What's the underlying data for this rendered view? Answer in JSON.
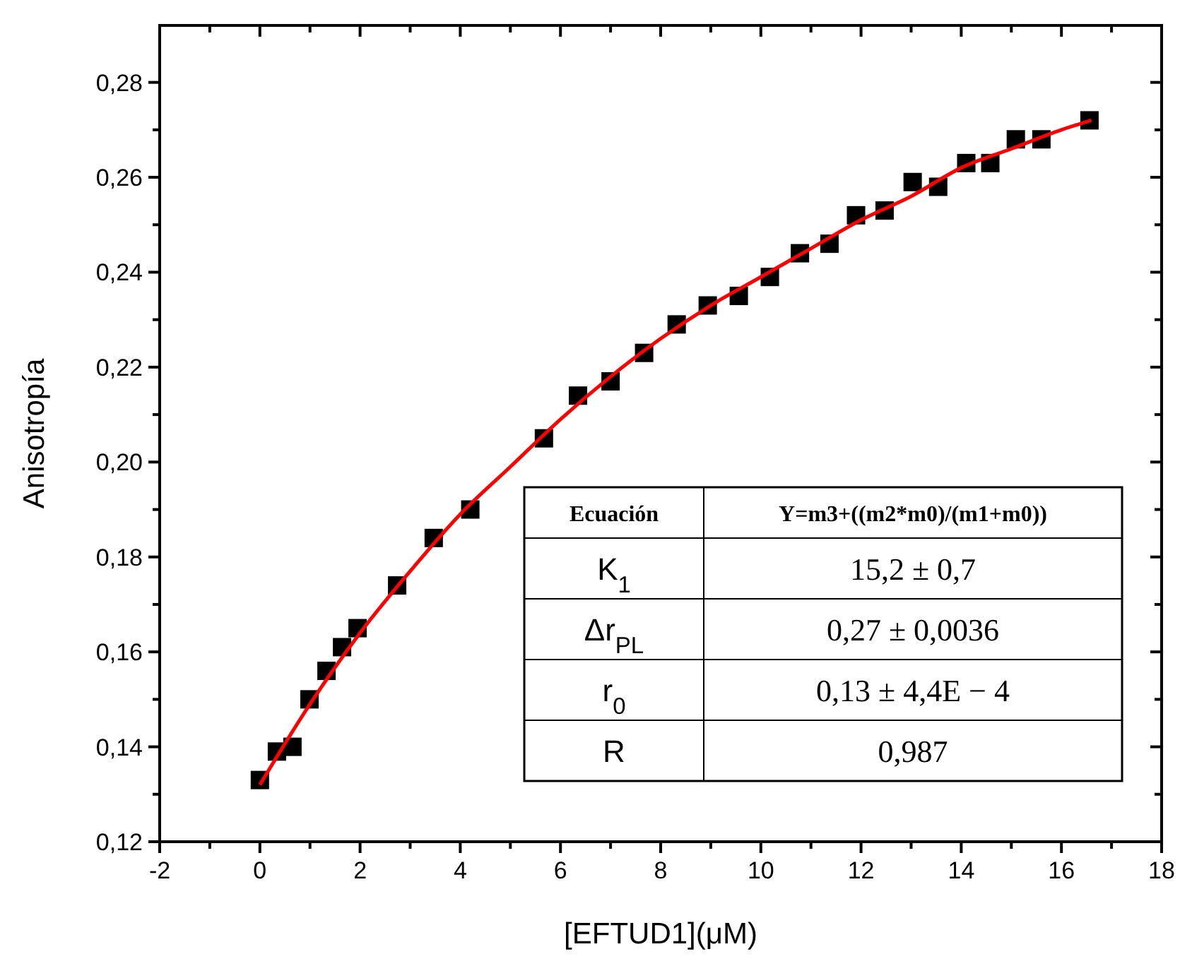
{
  "chart_data": {
    "type": "scatter",
    "xlabel": "[EFTUD1](μM)",
    "ylabel": "Anisotropía",
    "xlim": [
      -2,
      18
    ],
    "ylim": [
      0.12,
      0.292
    ],
    "xticks": [
      -2,
      {
        "value": -1,
        "label": null
      },
      0,
      {
        "value": 1,
        "label": null
      },
      2,
      {
        "value": 3,
        "label": null
      },
      4,
      {
        "value": 5,
        "label": null
      },
      6,
      {
        "value": 7,
        "label": null
      },
      8,
      {
        "value": 9,
        "label": null
      },
      10,
      {
        "value": 11,
        "label": null
      },
      12,
      {
        "value": 13,
        "label": null
      },
      14,
      {
        "value": 15,
        "label": null
      },
      16,
      {
        "value": 17,
        "label": null
      },
      18
    ],
    "yticks": [
      {
        "value": 0.12,
        "label": "0,12"
      },
      {
        "value": 0.13,
        "label": null
      },
      {
        "value": 0.14,
        "label": "0,14"
      },
      {
        "value": 0.15,
        "label": null
      },
      {
        "value": 0.16,
        "label": "0,16"
      },
      {
        "value": 0.17,
        "label": null
      },
      {
        "value": 0.18,
        "label": "0,18"
      },
      {
        "value": 0.19,
        "label": null
      },
      {
        "value": 0.2,
        "label": "0,20"
      },
      {
        "value": 0.21,
        "label": null
      },
      {
        "value": 0.22,
        "label": "0,22"
      },
      {
        "value": 0.23,
        "label": null
      },
      {
        "value": 0.24,
        "label": "0,24"
      },
      {
        "value": 0.25,
        "label": null
      },
      {
        "value": 0.26,
        "label": "0,26"
      },
      {
        "value": 0.27,
        "label": null
      },
      {
        "value": 0.28,
        "label": "0,28"
      }
    ],
    "series": [
      {
        "marker": "square",
        "color": "#000000",
        "x": [
          0,
          0.34,
          0.65,
          0.99,
          1.33,
          1.64,
          1.95,
          2.74,
          3.47,
          4.2,
          5.67,
          6.35,
          7.0,
          7.67,
          8.32,
          8.94,
          9.56,
          10.18,
          10.78,
          11.37,
          11.9,
          12.47,
          13.03,
          13.54,
          14.1,
          14.58,
          15.09,
          15.6,
          16.56
        ],
        "values": [
          0.133,
          0.139,
          0.14,
          0.15,
          0.156,
          0.161,
          0.165,
          0.174,
          0.184,
          0.19,
          0.205,
          0.214,
          0.217,
          0.223,
          0.229,
          0.233,
          0.235,
          0.239,
          0.244,
          0.246,
          0.252,
          0.253,
          0.259,
          0.258,
          0.263,
          0.263,
          0.268,
          0.268,
          0.272
        ]
      },
      {
        "type": "line",
        "color": "#ff0000",
        "marker": "none",
        "line_style": "solid",
        "x": [
          0,
          1,
          2,
          3,
          4,
          5,
          6,
          7,
          8,
          9,
          10,
          11,
          12,
          13,
          14,
          15,
          16,
          16.6
        ],
        "values": [
          0.132,
          0.149,
          0.164,
          0.177,
          0.189,
          0.199,
          0.209,
          0.218,
          0.226,
          0.233,
          0.239,
          0.245,
          0.251,
          0.256,
          0.262,
          0.266,
          0.27,
          0.272
        ]
      }
    ],
    "annotations": [
      "Ecuación",
      "Y=m3+((m2*m0)/(m1+m0))",
      "K$_{1}$",
      "15,2 ± 0,7",
      "Δr$_{PL}$",
      "0,27  ± 0,0036",
      "r$_{0}$",
      "0,13 ± 4,4E − 4",
      "R",
      "0,987"
    ]
  }
}
